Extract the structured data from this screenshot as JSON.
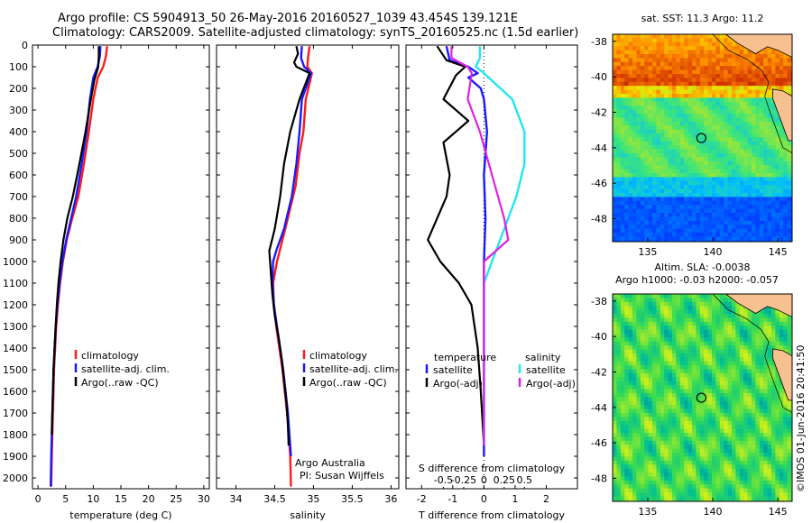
{
  "header": {
    "line1": "Argo profile: CS 5904913_50 26-May-2016 20160527_1039 43.454S 139.121E",
    "line2": "Climatology: CARS2009. Satellite-adjusted climatology: synTS_20160525.nc (1.5d earlier)"
  },
  "colors": {
    "climatology": "#ff1a1a",
    "satellite": "#1a1aff",
    "argo": "#000000",
    "sat_salt": "#22e5f0",
    "argo_salt": "#e020e0",
    "land": "#f6c18e"
  },
  "chart_data": [
    {
      "id": "temperature",
      "type": "line",
      "xlabel": "temperature (deg C)",
      "ylabel": "",
      "xlim": [
        -1,
        31
      ],
      "ylim": [
        2050,
        0
      ],
      "xticks": [
        "0",
        "5",
        "10",
        "15",
        "20",
        "25",
        "30"
      ],
      "yticks": [
        "0",
        "100",
        "200",
        "300",
        "400",
        "500",
        "600",
        "700",
        "800",
        "900",
        "1000",
        "1100",
        "1200",
        "1300",
        "1400",
        "1500",
        "1600",
        "1700",
        "1800",
        "1900",
        "2000"
      ],
      "legend": [
        "climatology",
        "satellite-adj. clim.",
        "Argo(..raw -QC)"
      ],
      "series": [
        {
          "name": "climatology",
          "x": [
            12.5,
            12.3,
            11.8,
            10.8,
            10.0,
            9.2,
            8.3,
            7.3,
            6.2,
            5.2,
            4.5,
            4.0,
            3.6,
            3.3,
            3.1,
            2.9,
            2.8,
            2.7,
            2.6,
            2.5,
            2.4
          ],
          "y": [
            5,
            50,
            100,
            150,
            250,
            400,
            550,
            700,
            800,
            900,
            1000,
            1100,
            1200,
            1300,
            1400,
            1500,
            1600,
            1700,
            1800,
            1900,
            2040
          ]
        },
        {
          "name": "satellite-adj. clim.",
          "x": [
            11.3,
            11.2,
            10.8,
            10.0,
            9.4,
            8.8,
            7.9,
            6.9,
            6.0,
            5.1,
            4.4,
            3.9,
            3.5,
            3.2,
            3.0,
            2.8,
            2.7,
            2.6,
            2.5,
            2.4,
            2.3
          ],
          "y": [
            5,
            50,
            100,
            150,
            250,
            400,
            550,
            700,
            800,
            900,
            1000,
            1100,
            1200,
            1300,
            1400,
            1500,
            1600,
            1700,
            1800,
            1900,
            2040
          ]
        },
        {
          "name": "Argo(..raw -QC)",
          "x": [
            11.0,
            11.0,
            10.9,
            10.2,
            9.5,
            8.6,
            7.4,
            6.3,
            5.3,
            4.6,
            4.1,
            3.7,
            3.4,
            3.2,
            3.0,
            2.8,
            2.7,
            2.6,
            2.5
          ],
          "y": [
            5,
            50,
            100,
            160,
            260,
            400,
            560,
            700,
            800,
            900,
            1000,
            1100,
            1200,
            1300,
            1400,
            1500,
            1600,
            1700,
            1800
          ]
        }
      ]
    },
    {
      "id": "salinity",
      "type": "line",
      "xlabel": "salinity",
      "ylabel": "",
      "xlim": [
        33.75,
        36.1
      ],
      "ylim": [
        2050,
        0
      ],
      "xticks": [
        "34",
        "34.5",
        "35",
        "35.5",
        "36"
      ],
      "legend": [
        "climatology",
        "satellite-adj. clim.",
        "Argo(..raw -QC)"
      ],
      "annotations": [
        "Argo Australia",
        "PI: Susan Wijffels"
      ],
      "series": [
        {
          "name": "climatology",
          "x": [
            34.95,
            34.93,
            34.92,
            34.98,
            34.9,
            34.87,
            34.82,
            34.77,
            34.67,
            34.6,
            34.53,
            34.48,
            34.49,
            34.52,
            34.56,
            34.6,
            34.63,
            34.66,
            34.68,
            34.7,
            34.71
          ],
          "y": [
            5,
            60,
            100,
            130,
            250,
            400,
            500,
            650,
            800,
            900,
            1000,
            1100,
            1200,
            1300,
            1400,
            1500,
            1600,
            1700,
            1800,
            1900,
            2040
          ]
        },
        {
          "name": "satellite-adj. clim.",
          "x": [
            34.85,
            34.84,
            34.88,
            34.97,
            34.85,
            34.82,
            34.78,
            34.72,
            34.62,
            34.52,
            34.48,
            34.47,
            34.49,
            34.53,
            34.57,
            34.61,
            34.64,
            34.67,
            34.69,
            34.71
          ],
          "y": [
            5,
            60,
            100,
            130,
            250,
            400,
            550,
            700,
            850,
            950,
            1000,
            1100,
            1200,
            1300,
            1400,
            1500,
            1600,
            1700,
            1800,
            1900
          ]
        },
        {
          "name": "Argo(..raw -QC)",
          "x": [
            34.78,
            34.8,
            34.75,
            34.78,
            34.95,
            34.82,
            34.7,
            34.62,
            34.57,
            34.5,
            34.43,
            34.45,
            34.47,
            34.5,
            34.55,
            34.59,
            34.62,
            34.65,
            34.67,
            34.68
          ],
          "y": [
            5,
            40,
            80,
            100,
            130,
            250,
            400,
            550,
            700,
            850,
            950,
            1050,
            1150,
            1250,
            1350,
            1450,
            1550,
            1650,
            1750,
            1850
          ]
        }
      ]
    },
    {
      "id": "difference",
      "type": "line",
      "xlabel": "T difference from climatology",
      "xlabel_top": "S difference from climatology",
      "xlim": [
        -2.5,
        3.0
      ],
      "ylim": [
        2050,
        0
      ],
      "xticks": [
        "-2",
        "-1",
        "0",
        "1",
        "2"
      ],
      "xticks_top": [
        "-0.5",
        "-0.25",
        "0",
        "0.25",
        "0.5"
      ],
      "legend_headers": [
        "temperature",
        "salinity"
      ],
      "legend": [
        "satellite",
        "Argo(-adj)",
        "satellite",
        "Argo(-adj)"
      ],
      "series": [
        {
          "name": "temperature satellite",
          "x": [
            -1.2,
            -1.1,
            -0.5,
            -0.2,
            -0.5,
            -0.1,
            0.0,
            0.1,
            0.0,
            0.05,
            0.0,
            0.0,
            0.0,
            0.0,
            0.0
          ],
          "y": [
            5,
            70,
            100,
            130,
            150,
            200,
            250,
            400,
            600,
            800,
            1000,
            1200,
            1500,
            1800,
            1900
          ]
        },
        {
          "name": "temperature Argo(-adj)",
          "x": [
            -1.5,
            -1.2,
            -0.6,
            -0.9,
            -1.3,
            -0.5,
            -1.3,
            -1.1,
            -1.2,
            -1.8,
            -1.4,
            -0.8,
            -0.4,
            -0.2,
            -0.1,
            0.0
          ],
          "y": [
            5,
            70,
            100,
            140,
            250,
            350,
            450,
            600,
            700,
            900,
            1000,
            1100,
            1200,
            1400,
            1600,
            1850
          ]
        },
        {
          "name": "salinity satellite",
          "x": [
            -0.05,
            -0.05,
            -0.1,
            0.0,
            0.35,
            0.5,
            0.5,
            0.4,
            0.2,
            0.1,
            0.0,
            0.0,
            0.0
          ],
          "y": [
            5,
            60,
            100,
            130,
            250,
            400,
            550,
            700,
            900,
            1000,
            1100,
            1500,
            1850
          ]
        },
        {
          "name": "salinity Argo(-adj)",
          "x": [
            -0.4,
            -0.4,
            -0.2,
            -0.15,
            -0.2,
            -0.05,
            0.1,
            0.25,
            0.3,
            0.0,
            0.0,
            0.0
          ],
          "y": [
            5,
            60,
            100,
            130,
            250,
            400,
            600,
            800,
            900,
            1000,
            1200,
            1850
          ]
        }
      ]
    },
    {
      "id": "sst-map",
      "type": "heatmap",
      "title": "sat. SST: 11.3  Argo: 11.2",
      "xlim": [
        132.3,
        146.1
      ],
      "ylim": [
        -49.3,
        -37.6
      ],
      "xticks": [
        "135",
        "140",
        "145"
      ],
      "yticks": [
        "-38",
        "-40",
        "-42",
        "-44",
        "-46",
        "-48"
      ],
      "argo_lon": 139.121,
      "argo_lat": -43.454
    },
    {
      "id": "sla-map",
      "type": "heatmap",
      "title": "Altim. SLA: -0.0038",
      "subtitle": "Argo h1000: -0.03 h2000: -0.057",
      "xlim": [
        132.3,
        146.1
      ],
      "ylim": [
        -49.3,
        -37.6
      ],
      "xticks": [
        "135",
        "140",
        "145"
      ],
      "yticks": [
        "-38",
        "-40",
        "-42",
        "-44",
        "-46",
        "-48"
      ],
      "argo_lon": 139.121,
      "argo_lat": -43.454
    }
  ],
  "watermark": "©IMOS 01-Jun-2016 20:41:50"
}
